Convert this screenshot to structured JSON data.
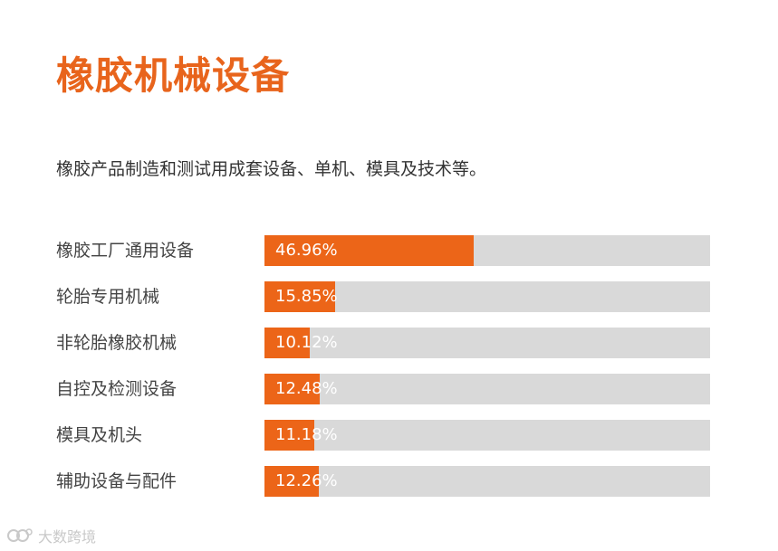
{
  "title": "橡胶机械设备",
  "subtitle": "橡胶产品制造和测试用成套设备、单机、模具及技术等。",
  "watermark_text": "大数跨境",
  "colors": {
    "accent": "#ec6518",
    "track": "#d9d9d9",
    "title": "#e8641c"
  },
  "chart_data": {
    "type": "bar",
    "orientation": "horizontal",
    "categories": [
      "橡胶工厂通用设备",
      "轮胎专用机械",
      "非轮胎橡胶机械",
      "自控及检测设备",
      "模具及机头",
      "辅助设备与配件"
    ],
    "values": [
      46.96,
      15.85,
      10.12,
      12.48,
      11.18,
      12.26
    ],
    "value_labels": [
      "46.96%",
      "15.85%",
      "10.12%",
      "12.48%",
      "11.18%",
      "12.26%"
    ],
    "xlim": [
      0,
      100
    ],
    "unit": "%"
  }
}
